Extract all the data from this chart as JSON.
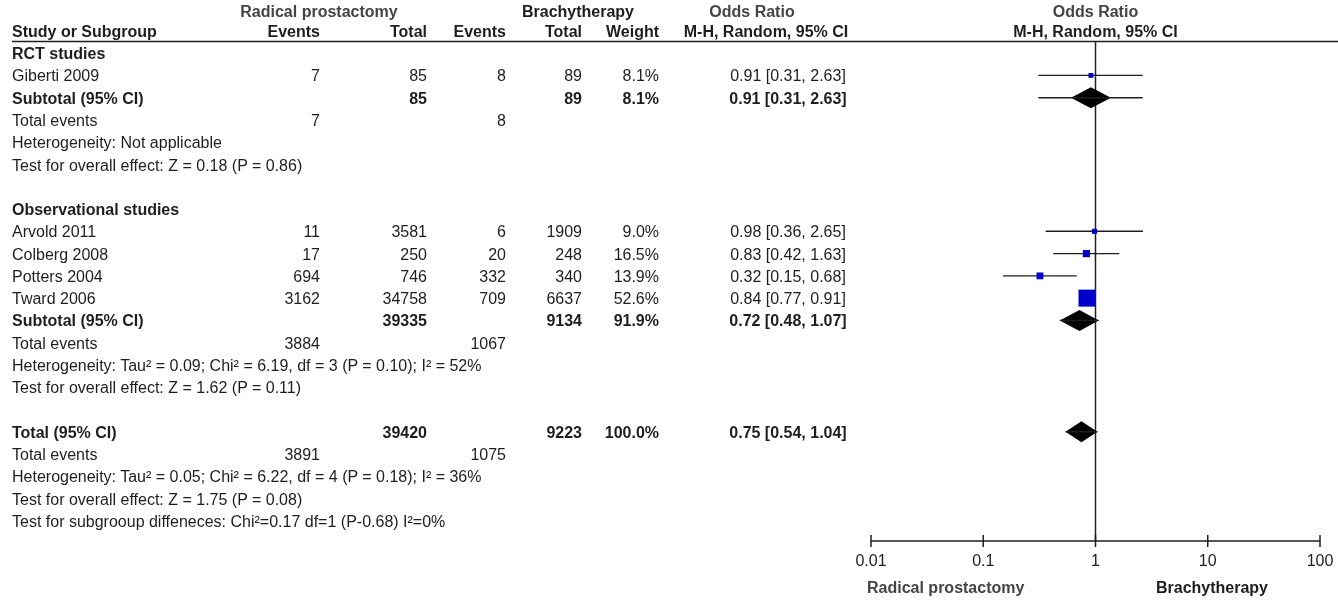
{
  "chart_data": [
    {
      "type": "other",
      "ylabel": "Study or Subgroup",
      "categories": [
        "RCT studies",
        "Giberti 2009",
        "Subtotal (95% CI)",
        "Total events",
        "Heterogeneity: Not applicable",
        "Test for overall effect: Z = 0.18 (P = 0.86)",
        null,
        "Observational studies",
        "Arvold 2011",
        "Colberg 2008",
        "Potters 2004",
        "Tward 2006",
        "Subtotal (95% CI)",
        "Total events",
        "Heterogeneity: Tau² = 0.09; Chi² = 6.19, df = 3 (P = 0.10); I² = 52%",
        "Test for overall effect: Z = 1.62 (P = 0.11)",
        null,
        "Total (95% CI)",
        "Total events",
        "Heterogeneity: Tau² = 0.05; Chi² = 6.22, df = 4 (P = 0.18); I² = 36%",
        "Test for overall effect: Z = 1.75 (P = 0.08)",
        "Test for subgrooup diffeneces: Chi²=0.17 df=1 (P-0.68) I²=0%"
      ],
      "series": [
        {
          "name": "Events",
          "data_labels": true,
          "values": [
            null,
            7,
            null,
            7,
            null,
            null,
            null,
            null,
            11,
            17,
            694,
            3162,
            null,
            3884,
            null,
            null,
            null,
            null,
            3891,
            null,
            null,
            null
          ]
        },
        {
          "name": "Total",
          "data_labels": true,
          "values": [
            null,
            85,
            85,
            null,
            null,
            null,
            null,
            null,
            3581,
            250,
            746,
            34758,
            39335,
            null,
            null,
            null,
            null,
            39420,
            null,
            null,
            null,
            null
          ]
        },
        {
          "name": "Events",
          "data_labels": true,
          "values": [
            null,
            8,
            null,
            8,
            null,
            null,
            null,
            null,
            6,
            20,
            332,
            709,
            null,
            1067,
            null,
            null,
            null,
            null,
            1075,
            null,
            null,
            null
          ]
        },
        {
          "name": "Total",
          "data_labels": true,
          "values": [
            null,
            89,
            89,
            null,
            null,
            null,
            null,
            null,
            1909,
            248,
            340,
            6637,
            9134,
            null,
            null,
            null,
            null,
            9223,
            null,
            null,
            null,
            null
          ]
        },
        {
          "name": "Weight",
          "values": [
            null,
            8.1,
            8.1,
            null,
            null,
            null,
            null,
            null,
            9.0,
            16.5,
            13.9,
            52.6,
            91.9,
            null,
            null,
            null,
            null,
            100.0,
            null,
            null,
            null,
            null
          ],
          "value_labels": [
            null,
            "8.1%",
            "8.1%",
            null,
            null,
            null,
            null,
            null,
            "9.0%",
            "16.5%",
            "13.9%",
            "52.6%",
            "91.9%",
            null,
            null,
            null,
            null,
            "100.0%",
            null,
            null,
            null,
            null
          ]
        },
        {
          "name": "M-H, Random, 95% CI",
          "values": [
            null,
            0.91,
            0.91,
            null,
            null,
            null,
            null,
            null,
            0.98,
            0.83,
            0.32,
            0.84,
            0.72,
            null,
            null,
            null,
            null,
            0.75,
            null,
            null,
            null,
            null
          ],
          "value_labels": [
            null,
            "0.91 [0.31, 2.63]",
            "0.91 [0.31, 2.63]",
            null,
            null,
            null,
            null,
            null,
            "0.98 [0.36, 2.65]",
            "0.83 [0.42, 1.63]",
            "0.32 [0.15, 0.68]",
            "0.84 [0.77, 0.91]",
            "0.72 [0.48, 1.07]",
            null,
            null,
            null,
            null,
            "0.75 [0.54, 1.04]",
            null,
            null,
            null,
            null
          ]
        }
      ],
      "annotations": [
        "Radical prostactomy",
        "Brachytherapy",
        "Odds Ratio"
      ]
    },
    {
      "type": "scatter",
      "orientation": "horizontal",
      "title": "Odds Ratio",
      "subtitle": "M-H, Random, 95% CI",
      "categories": [
        null,
        null,
        null,
        null,
        null,
        null,
        null,
        null,
        null,
        null,
        null,
        null,
        null,
        null,
        null,
        null,
        null,
        null,
        null,
        null,
        null,
        null
      ],
      "series": [
        {
          "type": "bubble",
          "marker": "square",
          "color": "#0000cc",
          "values": [
            null,
            0.91,
            null,
            null,
            null,
            null,
            null,
            null,
            0.98,
            0.83,
            0.32,
            0.84,
            null,
            null,
            null,
            null,
            null,
            null,
            null,
            null,
            null,
            null
          ],
          "errors": [
            null,
            [
              0.31,
              2.63
            ],
            null,
            null,
            null,
            null,
            null,
            null,
            [
              0.36,
              2.65
            ],
            [
              0.42,
              1.63
            ],
            [
              0.15,
              0.68
            ],
            null,
            null,
            null,
            null,
            null,
            null,
            null,
            null,
            null,
            null,
            null
          ],
          "sizes": [
            null,
            0.08,
            null,
            null,
            null,
            null,
            null,
            null,
            0.09,
            0.18,
            0.16,
            1,
            null,
            null,
            null,
            null,
            null,
            null,
            null,
            null,
            null,
            null
          ]
        },
        {
          "type": "scatter",
          "marker": "diamond",
          "color": "#000000",
          "values": [
            null,
            null,
            0.91,
            null,
            null,
            null,
            null,
            null,
            null,
            null,
            null,
            null,
            0.72,
            null,
            null,
            null,
            null,
            0.75,
            null,
            null,
            null,
            null
          ],
          "errors": [
            null,
            null,
            [
              0.31,
              2.63
            ],
            null,
            null,
            null,
            null,
            null,
            null,
            null,
            null,
            null,
            [
              0.48,
              1.07
            ],
            null,
            null,
            null,
            null,
            [
              0.54,
              1.04
            ],
            null,
            null,
            null,
            null
          ]
        }
      ],
      "xlim": [
        0.01,
        100
      ],
      "xticks": [
        0.01,
        0.1,
        1,
        10,
        100
      ],
      "log": "x",
      "ref_lines": [
        {
          "axis": "x",
          "value": 1,
          "color": "#222222"
        }
      ],
      "annotations": [
        "Radical prostactomy",
        "Brachytherapy"
      ]
    }
  ]
}
